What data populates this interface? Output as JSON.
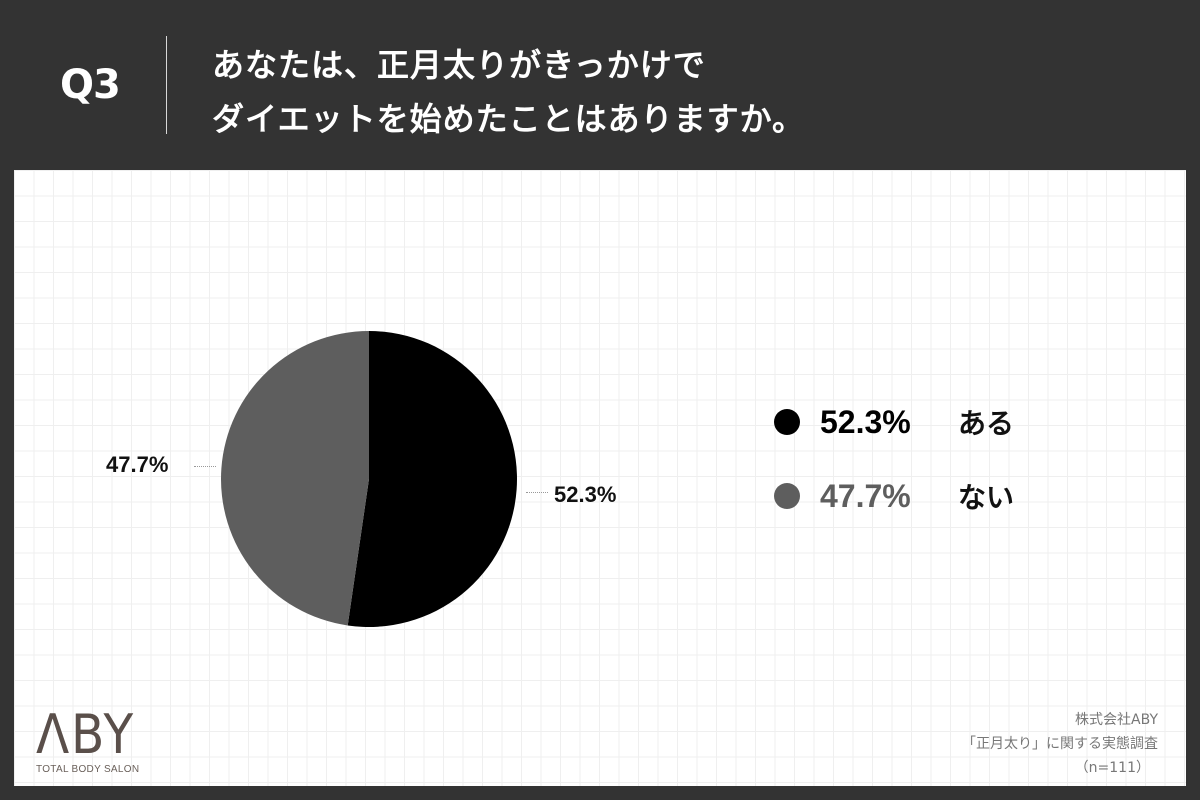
{
  "header": {
    "question_number": "Q3",
    "title_line1": "あなたは、正月太りがきっかけで",
    "title_line2": "ダイエットを始めたことはありますか。"
  },
  "colors": {
    "background": "#333333",
    "slice_yes": "#000000",
    "slice_no": "#5e5e5e",
    "panel": "#ffffff",
    "logo": "#5a4f4a"
  },
  "chart_data": {
    "type": "pie",
    "title": "あなたは、正月太りがきっかけでダイエットを始めたことはありますか。",
    "categories": [
      "ある",
      "ない"
    ],
    "values": [
      52.3,
      47.7
    ],
    "unit": "%",
    "colors": [
      "#000000",
      "#5e5e5e"
    ],
    "data_labels": [
      "52.3%",
      "47.7%"
    ],
    "start_angle_deg": 0,
    "direction": "clockwise",
    "legend_position": "right",
    "sample_size": "n=111"
  },
  "pie_labels": {
    "yes_label": "52.3%",
    "no_label": "47.7%"
  },
  "legend": {
    "items": [
      {
        "pct": "52.3%",
        "name": "ある",
        "color": "#000000"
      },
      {
        "pct": "47.7%",
        "name": "ない",
        "color": "#5e5e5e"
      }
    ]
  },
  "logo": {
    "mark": "ΛBY",
    "tagline": "TOTAL BODY SALON"
  },
  "source": {
    "company": "株式会社ABY",
    "survey": "「正月太り」に関する実態調査",
    "sample": "（n=111）"
  }
}
